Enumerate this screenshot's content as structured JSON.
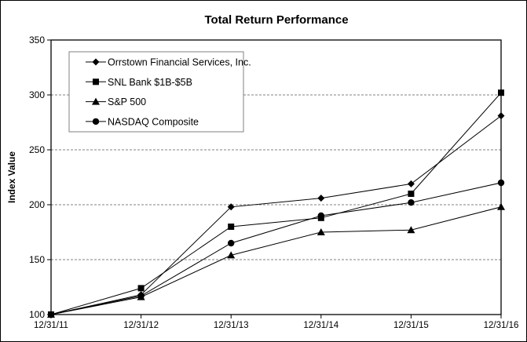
{
  "chart_data": {
    "type": "line",
    "title": "Total Return Performance",
    "xlabel": "",
    "ylabel": "Index Value",
    "categories": [
      "12/31/11",
      "12/31/12",
      "12/31/13",
      "12/31/14",
      "12/31/15",
      "12/31/16"
    ],
    "ylim": [
      100,
      350
    ],
    "yticks": [
      100,
      150,
      200,
      250,
      300,
      350
    ],
    "grid": "horizontal dashed",
    "legend_position": "top-left",
    "series": [
      {
        "name": "Orrstown Financial Services, Inc.",
        "marker": "diamond",
        "values": [
          100,
          118,
          198,
          206,
          219,
          281
        ]
      },
      {
        "name": "SNL Bank $1B-$5B",
        "marker": "square",
        "values": [
          100,
          124,
          180,
          188,
          210,
          302
        ]
      },
      {
        "name": "S&P 500",
        "marker": "triangle",
        "values": [
          100,
          116,
          154,
          175,
          177,
          198
        ]
      },
      {
        "name": "NASDAQ Composite",
        "marker": "circle",
        "values": [
          100,
          117,
          165,
          190,
          202,
          220
        ]
      }
    ],
    "colors": {
      "line": "#000000",
      "grid": "#808080",
      "legend_border": "#808080"
    }
  }
}
